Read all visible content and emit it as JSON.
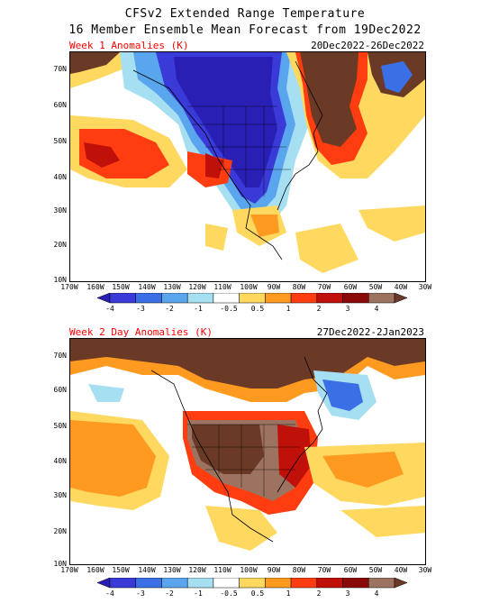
{
  "title_line1": "CFSv2 Extended Range Temperature",
  "title_line2": "16 Member Ensemble Mean Forecast from 19Dec2022",
  "panels": [
    {
      "label": "Week 1 Anomalies (K)",
      "dates": "20Dec2022-26Dec2022"
    },
    {
      "label": "Week 2 Day Anomalies (K)",
      "dates": "27Dec2022-2Jan2023"
    }
  ],
  "lat_labels": [
    "70N",
    "60N",
    "50N",
    "40N",
    "30N",
    "20N",
    "10N"
  ],
  "lon_labels": [
    "170W",
    "160W",
    "150W",
    "140W",
    "130W",
    "120W",
    "110W",
    "100W",
    "90W",
    "80W",
    "70W",
    "60W",
    "50W",
    "40W",
    "30W"
  ],
  "colorbar": {
    "ticks": [
      "-4",
      "-3",
      "-2",
      "-1",
      "-0.5",
      "0.5",
      "1",
      "2",
      "3",
      "4"
    ],
    "colors": [
      "#2a1fb5",
      "#3a3ad8",
      "#3a6fe6",
      "#5aa6ee",
      "#a6dff2",
      "#ffffff",
      "#ffd860",
      "#ff9a20",
      "#ff3d10",
      "#c0100a",
      "#8a0a0a",
      "#9c7260",
      "#6b3a26"
    ]
  },
  "colors": {
    "land_outline": "#000000",
    "title_red": "#ff0000"
  }
}
